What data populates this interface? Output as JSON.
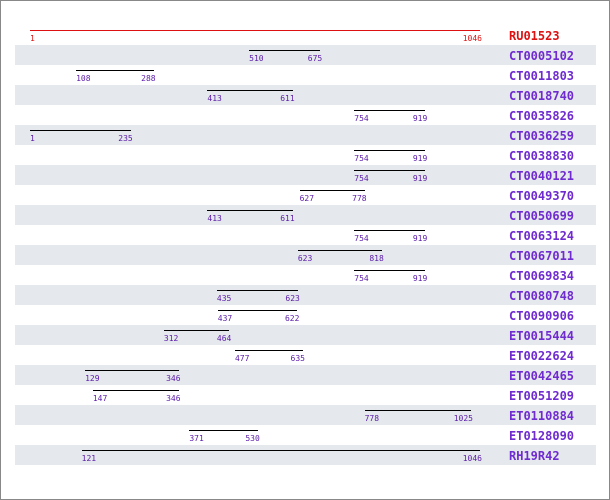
{
  "scale": {
    "min": 1,
    "max": 1046
  },
  "colors": {
    "reference": "#dd1111",
    "label": "#6f2bd0",
    "number": "#5a1aa8",
    "stripe": "#e5e8ec",
    "line": "#000000"
  },
  "reference": {
    "id": "RU01523",
    "start": 1,
    "end": 1046
  },
  "alignments": [
    {
      "id": "CT0005102",
      "start": 510,
      "end": 675
    },
    {
      "id": "CT0011803",
      "start": 108,
      "end": 288
    },
    {
      "id": "CT0018740",
      "start": 413,
      "end": 611
    },
    {
      "id": "CT0035826",
      "start": 754,
      "end": 919
    },
    {
      "id": "CT0036259",
      "start": 1,
      "end": 235
    },
    {
      "id": "CT0038830",
      "start": 754,
      "end": 919
    },
    {
      "id": "CT0040121",
      "start": 754,
      "end": 919
    },
    {
      "id": "CT0049370",
      "start": 627,
      "end": 778
    },
    {
      "id": "CT0050699",
      "start": 413,
      "end": 611
    },
    {
      "id": "CT0063124",
      "start": 754,
      "end": 919
    },
    {
      "id": "CT0067011",
      "start": 623,
      "end": 818
    },
    {
      "id": "CT0069834",
      "start": 754,
      "end": 919
    },
    {
      "id": "CT0080748",
      "start": 435,
      "end": 623
    },
    {
      "id": "CT0090906",
      "start": 437,
      "end": 622
    },
    {
      "id": "ET0015444",
      "start": 312,
      "end": 464
    },
    {
      "id": "ET0022624",
      "start": 477,
      "end": 635
    },
    {
      "id": "ET0042465",
      "start": 129,
      "end": 346
    },
    {
      "id": "ET0051209",
      "start": 147,
      "end": 346
    },
    {
      "id": "ET0110884",
      "start": 778,
      "end": 1025
    },
    {
      "id": "ET0128090",
      "start": 371,
      "end": 530
    },
    {
      "id": "RH19R42",
      "start": 121,
      "end": 1046
    }
  ]
}
